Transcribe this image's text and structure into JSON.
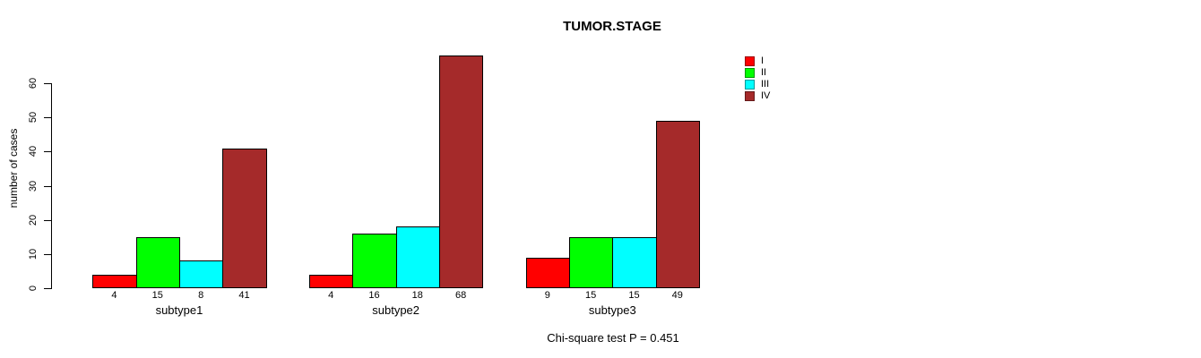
{
  "title": "TUMOR.STAGE",
  "footer": "Chi-square test P = 0.451",
  "chart_data": {
    "type": "bar",
    "title": "TUMOR.STAGE",
    "xlabel": "",
    "ylabel": "number of cases",
    "categories": [
      "subtype1",
      "subtype2",
      "subtype3"
    ],
    "series": [
      {
        "name": "I",
        "color": "#FF0000",
        "values": [
          4,
          4,
          9
        ]
      },
      {
        "name": "II",
        "color": "#00FF00",
        "values": [
          15,
          16,
          15
        ]
      },
      {
        "name": "III",
        "color": "#00FFFF",
        "values": [
          8,
          18,
          15
        ]
      },
      {
        "name": "IV",
        "color": "#A52A2A",
        "values": [
          41,
          68,
          49
        ]
      }
    ],
    "yticks": [
      0,
      10,
      20,
      30,
      40,
      50,
      60
    ],
    "ylim": [
      0,
      68
    ],
    "grid": false,
    "show_value_labels": true,
    "legend_position": "top-right",
    "legend_entries": [
      "I",
      "II",
      "III",
      "IV"
    ],
    "annotation": "Chi-square test P = 0.451"
  }
}
